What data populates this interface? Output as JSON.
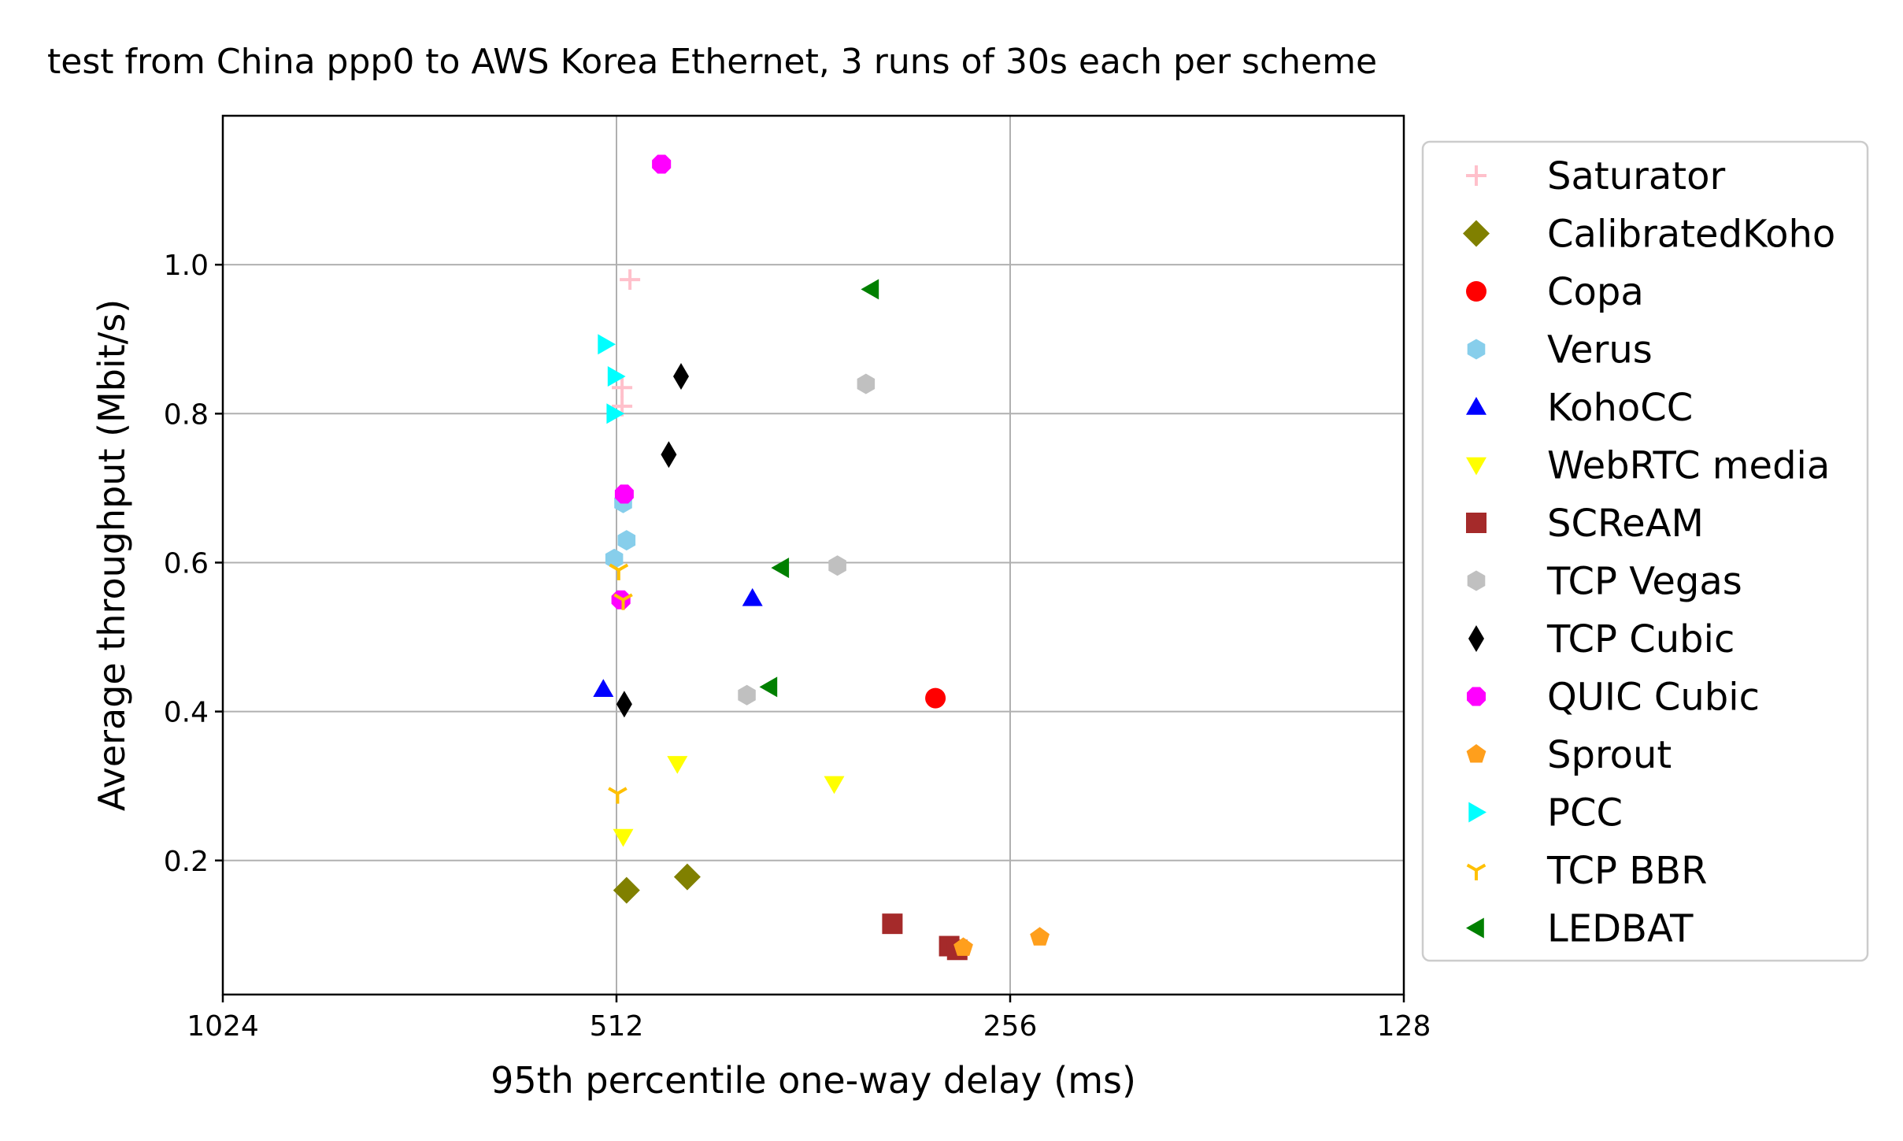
{
  "chart_data": {
    "type": "scatter",
    "title": "test from China ppp0 to AWS Korea Ethernet, 3 runs of 30s each per scheme",
    "xlabel": "95th percentile one-way delay (ms)",
    "ylabel": "Average throughput (Mbit/s)",
    "x_scale": "log2",
    "x_inverted": true,
    "xlim": [
      1024,
      128
    ],
    "ylim": [
      0.02,
      1.2
    ],
    "xticks": [
      1024,
      512,
      256,
      128
    ],
    "xtick_labels": [
      "1024",
      "512",
      "256",
      "128"
    ],
    "yticks": [
      0.2,
      0.4,
      0.6,
      0.8,
      1.0
    ],
    "ytick_labels": [
      "0.2",
      "0.4",
      "0.6",
      "0.8",
      "1.0"
    ],
    "grid": true,
    "legend_position": "outside right",
    "series": [
      {
        "name": "Saturator",
        "color": "#ffc0cb",
        "marker": "plus",
        "points": [
          [
            500,
            0.98
          ],
          [
            507,
            0.835
          ],
          [
            507,
            0.81
          ]
        ]
      },
      {
        "name": "CalibratedKoho",
        "color": "#808000",
        "marker": "diamond",
        "points": [
          [
            503,
            0.16
          ],
          [
            452,
            0.178
          ]
        ]
      },
      {
        "name": "Copa",
        "color": "#ff0000",
        "marker": "circle",
        "points": [
          [
            292,
            0.418
          ]
        ]
      },
      {
        "name": "Verus",
        "color": "#87ceeb",
        "marker": "hexagon",
        "points": [
          [
            506,
            0.68
          ],
          [
            503,
            0.63
          ],
          [
            514,
            0.605
          ]
        ]
      },
      {
        "name": "KohoCC",
        "color": "#0000ff",
        "marker": "triangle-up",
        "points": [
          [
            403,
            0.552
          ],
          [
            524,
            0.43
          ]
        ]
      },
      {
        "name": "WebRTC media",
        "color": "#ffff00",
        "marker": "triangle-down",
        "points": [
          [
            460,
            0.33
          ],
          [
            506,
            0.232
          ],
          [
            349,
            0.303
          ]
        ]
      },
      {
        "name": "SCReAM",
        "color": "#a52a2a",
        "marker": "square",
        "points": [
          [
            315,
            0.115
          ],
          [
            285,
            0.085
          ],
          [
            281,
            0.08
          ]
        ]
      },
      {
        "name": "TCP Vegas",
        "color": "#c0c0c0",
        "marker": "hexagon",
        "points": [
          [
            330,
            0.84
          ],
          [
            347,
            0.596
          ],
          [
            407,
            0.422
          ]
        ]
      },
      {
        "name": "TCP Cubic",
        "color": "#000000",
        "marker": "thin-diamond",
        "points": [
          [
            457,
            0.85
          ],
          [
            467,
            0.745
          ],
          [
            505,
            0.41
          ]
        ]
      },
      {
        "name": "QUIC Cubic",
        "color": "#ff00ff",
        "marker": "octagon",
        "points": [
          [
            473,
            1.135
          ],
          [
            505,
            0.692
          ],
          [
            508,
            0.55
          ]
        ]
      },
      {
        "name": "Sprout",
        "color": "#ff9f1c",
        "marker": "pentagon",
        "points": [
          [
            278,
            0.083
          ],
          [
            243,
            0.097
          ]
        ]
      },
      {
        "name": "PCC",
        "color": "#00ffff",
        "marker": "triangle-right",
        "points": [
          [
            522,
            0.893
          ],
          [
            513,
            0.85
          ],
          [
            514,
            0.8
          ]
        ]
      },
      {
        "name": "TCP BBR",
        "color": "#ffc000",
        "marker": "tri-down",
        "points": [
          [
            510,
            0.59
          ],
          [
            506,
            0.55
          ],
          [
            511,
            0.29
          ]
        ]
      },
      {
        "name": "LEDBAT",
        "color": "#008000",
        "marker": "triangle-left",
        "points": [
          [
            327,
            0.967
          ],
          [
            383,
            0.593
          ],
          [
            391,
            0.433
          ]
        ]
      }
    ]
  }
}
